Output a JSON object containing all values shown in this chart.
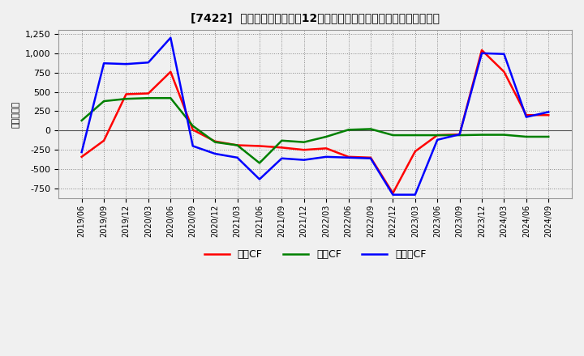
{
  "title": "[7422]  キャッシュフローの12か月移動合計の対前年同期増減額の推移",
  "ylabel": "（百万円）",
  "background_color": "#f0f0f0",
  "plot_bg_color": "#f0f0f0",
  "grid_color": "#888888",
  "x_labels": [
    "2019/06",
    "2019/09",
    "2019/12",
    "2020/03",
    "2020/06",
    "2020/09",
    "2020/12",
    "2021/03",
    "2021/06",
    "2021/09",
    "2021/12",
    "2022/03",
    "2022/06",
    "2022/09",
    "2022/12",
    "2023/03",
    "2023/06",
    "2023/09",
    "2023/12",
    "2024/03",
    "2024/06",
    "2024/09"
  ],
  "operating_cf": [
    -340,
    -130,
    470,
    480,
    760,
    10,
    -140,
    -190,
    -200,
    -220,
    -250,
    -230,
    -340,
    -350,
    -810,
    -270,
    -60,
    -50,
    1040,
    760,
    200,
    200
  ],
  "investing_cf": [
    130,
    380,
    410,
    420,
    420,
    60,
    -150,
    -190,
    -420,
    -130,
    -150,
    -80,
    10,
    20,
    -60,
    -60,
    -60,
    -60,
    -55,
    -55,
    -80,
    -80
  ],
  "free_cf": [
    -280,
    870,
    860,
    880,
    1200,
    -200,
    -300,
    -350,
    -630,
    -360,
    -380,
    -340,
    -350,
    -360,
    -830,
    -830,
    -120,
    -50,
    1000,
    990,
    175,
    240
  ],
  "operating_color": "#ff0000",
  "investing_color": "#008000",
  "free_color": "#0000ff",
  "ylim": [
    -875,
    1300
  ],
  "yticks": [
    -750,
    -500,
    -250,
    0,
    250,
    500,
    750,
    1000,
    1250
  ],
  "legend_labels": [
    "営業CF",
    "投資CF",
    "フリーCF"
  ],
  "linewidth": 1.8,
  "title_bracket": "[7422]",
  "title_main": "キャッシュフローの12か月移動合計の対前年同期増減額の推移"
}
